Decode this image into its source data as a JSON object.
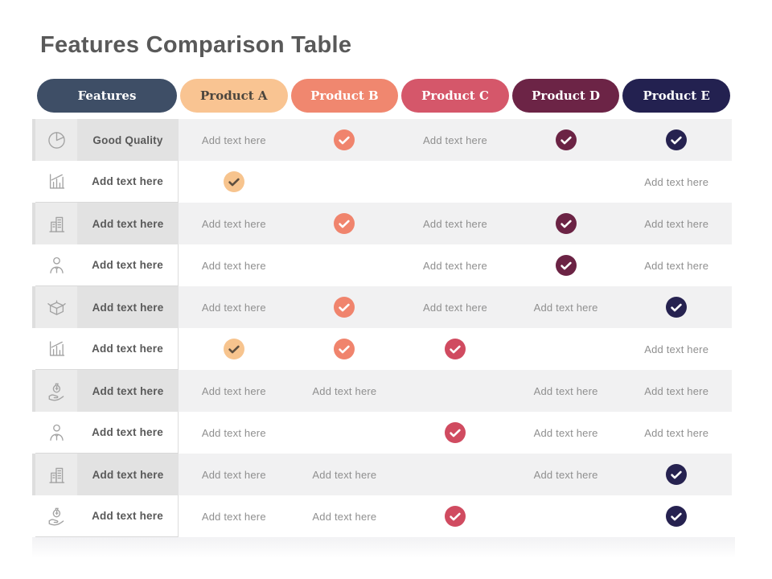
{
  "title": "Features Comparison Table",
  "header": {
    "features": {
      "label": "Features",
      "bg": "#3E4E66",
      "fg": "#ffffff"
    },
    "products": [
      {
        "id": "product-a",
        "label": "Product A",
        "bg": "#F9C492",
        "fg": "#4c463e"
      },
      {
        "id": "product-b",
        "label": "Product B",
        "bg": "#F0876F",
        "fg": "#ffffff"
      },
      {
        "id": "product-c",
        "label": "Product C",
        "bg": "#D5576A",
        "fg": "#ffffff"
      },
      {
        "id": "product-d",
        "label": "Product D",
        "bg": "#6C2446",
        "fg": "#ffffff"
      },
      {
        "id": "product-e",
        "label": "Product E",
        "bg": "#232150",
        "fg": "#ffffff"
      }
    ]
  },
  "check_colors": {
    "peach": {
      "bg": "#F7C48E",
      "mark": "#5e4f3f"
    },
    "salmon": {
      "bg": "#F0846D",
      "mark": "#ffffff"
    },
    "crimson": {
      "bg": "#D04B60",
      "mark": "#ffffff"
    },
    "maroon": {
      "bg": "#6B2344",
      "mark": "#ffffff"
    },
    "navy": {
      "bg": "#262250",
      "mark": "#ffffff"
    }
  },
  "table": {
    "placeholder": "Add text here",
    "rows": [
      {
        "icon": "pie-chart",
        "label": "Good Quality",
        "cells": [
          {
            "type": "text"
          },
          {
            "type": "check",
            "color": "salmon"
          },
          {
            "type": "text"
          },
          {
            "type": "check",
            "color": "maroon"
          },
          {
            "type": "check",
            "color": "navy"
          }
        ]
      },
      {
        "icon": "bar-chart",
        "label": "Add text here",
        "cells": [
          {
            "type": "check",
            "color": "peach"
          },
          {
            "type": "empty"
          },
          {
            "type": "empty"
          },
          {
            "type": "empty"
          },
          {
            "type": "text"
          }
        ]
      },
      {
        "icon": "building",
        "label": "Add text here",
        "cells": [
          {
            "type": "text"
          },
          {
            "type": "check",
            "color": "salmon"
          },
          {
            "type": "text"
          },
          {
            "type": "check",
            "color": "maroon"
          },
          {
            "type": "text"
          }
        ]
      },
      {
        "icon": "person",
        "label": "Add text here",
        "cells": [
          {
            "type": "text"
          },
          {
            "type": "empty"
          },
          {
            "type": "text"
          },
          {
            "type": "check",
            "color": "maroon"
          },
          {
            "type": "text"
          }
        ]
      },
      {
        "icon": "box",
        "label": "Add text here",
        "cells": [
          {
            "type": "text"
          },
          {
            "type": "check",
            "color": "salmon"
          },
          {
            "type": "text"
          },
          {
            "type": "text"
          },
          {
            "type": "check",
            "color": "navy"
          }
        ]
      },
      {
        "icon": "bar-chart",
        "label": "Add text here",
        "cells": [
          {
            "type": "check",
            "color": "peach"
          },
          {
            "type": "check",
            "color": "salmon"
          },
          {
            "type": "check",
            "color": "crimson"
          },
          {
            "type": "empty"
          },
          {
            "type": "text"
          }
        ]
      },
      {
        "icon": "hand-money",
        "label": "Add text here",
        "cells": [
          {
            "type": "text"
          },
          {
            "type": "text"
          },
          {
            "type": "empty"
          },
          {
            "type": "text"
          },
          {
            "type": "text"
          }
        ]
      },
      {
        "icon": "person",
        "label": "Add text here",
        "cells": [
          {
            "type": "text"
          },
          {
            "type": "empty"
          },
          {
            "type": "check",
            "color": "crimson"
          },
          {
            "type": "text"
          },
          {
            "type": "text"
          }
        ]
      },
      {
        "icon": "building",
        "label": "Add text here",
        "cells": [
          {
            "type": "text"
          },
          {
            "type": "text"
          },
          {
            "type": "empty"
          },
          {
            "type": "text"
          },
          {
            "type": "check",
            "color": "navy"
          }
        ]
      },
      {
        "icon": "hand-money",
        "label": "Add text here",
        "cells": [
          {
            "type": "text"
          },
          {
            "type": "text"
          },
          {
            "type": "check",
            "color": "crimson"
          },
          {
            "type": "empty"
          },
          {
            "type": "check",
            "color": "navy"
          }
        ]
      }
    ]
  }
}
